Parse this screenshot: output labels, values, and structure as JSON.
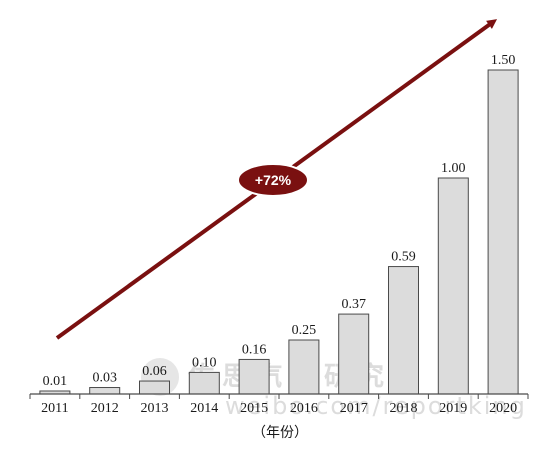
{
  "chart_data": {
    "type": "bar",
    "categories": [
      "2011",
      "2012",
      "2013",
      "2014",
      "2015",
      "2016",
      "2017",
      "2018",
      "2019",
      "2020"
    ],
    "values": [
      0.01,
      0.03,
      0.06,
      0.1,
      0.16,
      0.25,
      0.37,
      0.59,
      1.0,
      1.5
    ],
    "value_labels": [
      "0.01",
      "0.03",
      "0.06",
      "0.10",
      "0.16",
      "0.25",
      "0.37",
      "0.59",
      "1.00",
      "1.50"
    ],
    "xlabel": "（年份）",
    "ylabel": "",
    "ylim": [
      0,
      1.5
    ],
    "grid": false,
    "growth_label": "+72%",
    "bar_fill": "#dcdcdc",
    "bar_stroke": "#4a4a4a",
    "arrow_color": "#7a1010",
    "badge_color": "#7a1010"
  },
  "watermark": {
    "text_cn": "佐思汽车研究部",
    "url": "weibo.com/reportking"
  }
}
